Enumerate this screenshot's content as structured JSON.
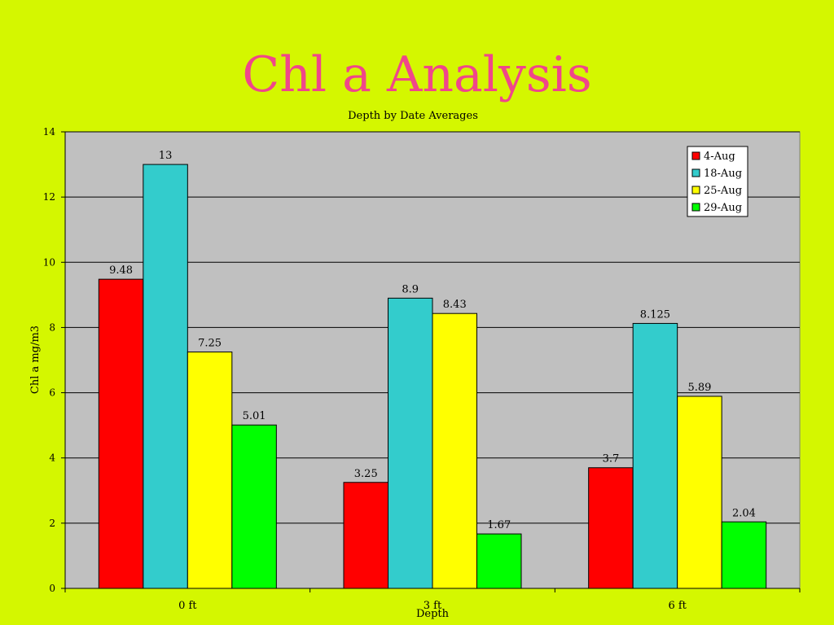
{
  "slide": {
    "title": "Chl a Analysis"
  },
  "chart_data": {
    "type": "bar",
    "title": "Depth by Date Averages",
    "xlabel": "Depth",
    "ylabel": "Chl a mg/m3",
    "categories": [
      "0 ft",
      "3 ft",
      "6 ft"
    ],
    "ylim": [
      0,
      14
    ],
    "yticks": [
      0,
      2,
      4,
      6,
      8,
      10,
      12,
      14
    ],
    "grid": true,
    "legend_position": "top-right",
    "series": [
      {
        "name": "4-Aug",
        "color": "#ff0000",
        "values": [
          9.48,
          3.25,
          3.7
        ],
        "labels": [
          "9.48",
          "3.25",
          "3.7"
        ]
      },
      {
        "name": "18-Aug",
        "color": "#33cccc",
        "values": [
          13,
          8.9,
          8.125
        ],
        "labels": [
          "13",
          "8.9",
          "8.125"
        ]
      },
      {
        "name": "25-Aug",
        "color": "#ffff00",
        "values": [
          7.25,
          8.43,
          5.89
        ],
        "labels": [
          "7.25",
          "8.43",
          "5.89"
        ]
      },
      {
        "name": "29-Aug",
        "color": "#00ff00",
        "values": [
          5.01,
          1.67,
          2.04
        ],
        "labels": [
          "5.01",
          "1.67",
          "2.04"
        ]
      }
    ],
    "plot_background": "#c0c0c0"
  }
}
